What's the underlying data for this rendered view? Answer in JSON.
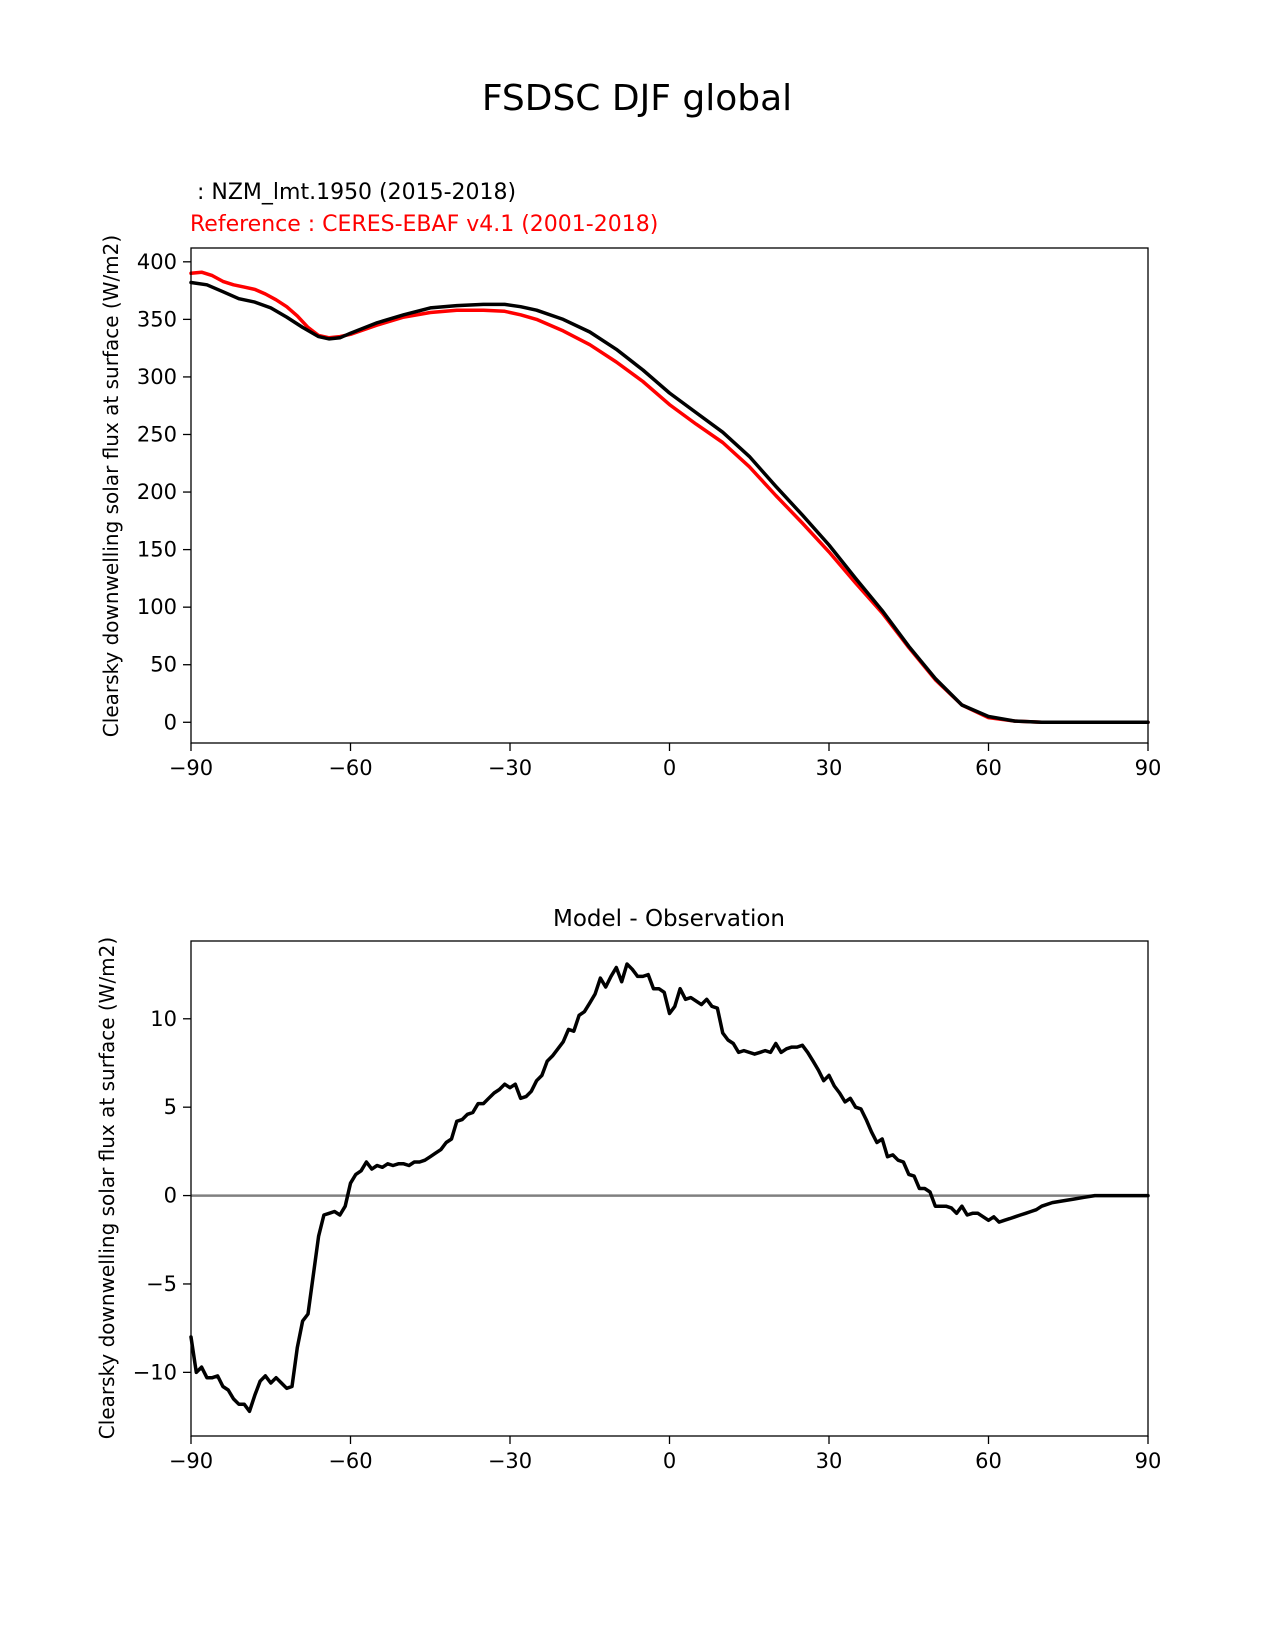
{
  "figure_title": "FSDSC DJF global",
  "chart_data": [
    {
      "type": "line",
      "test_label": " : NZM_lmt.1950 (2015-2018)",
      "reference_label": "Reference : CERES-EBAF v4.1 (2001-2018)",
      "xlabel": "",
      "ylabel": "Clearsky downwelling solar flux at surface (W/m2)",
      "xlim": [
        -90,
        90
      ],
      "ylim": [
        -18,
        412
      ],
      "xticks": [
        -90,
        -60,
        -30,
        0,
        30,
        60,
        90
      ],
      "xtick_labels": [
        "−90",
        "−60",
        "−30",
        "0",
        "30",
        "60",
        "90"
      ],
      "yticks": [
        0,
        50,
        100,
        150,
        200,
        250,
        300,
        350,
        400
      ],
      "ytick_labels": [
        "0",
        "50",
        "100",
        "150",
        "200",
        "250",
        "300",
        "350",
        "400"
      ],
      "series": [
        {
          "name": "NZM_lmt.1950 (2015-2018)",
          "color": "#000000",
          "x": [
            -90,
            -87,
            -84,
            -81,
            -78,
            -75,
            -72,
            -69,
            -66,
            -64,
            -62,
            -60,
            -55,
            -50,
            -45,
            -40,
            -35,
            -31,
            -28,
            -25,
            -20,
            -15,
            -10,
            -5,
            0,
            5,
            10,
            15,
            20,
            25,
            30,
            35,
            40,
            45,
            50,
            55,
            60,
            65,
            70,
            75,
            80,
            85,
            90
          ],
          "y": [
            382,
            380,
            374,
            368,
            365,
            360,
            352,
            343,
            335,
            333,
            334,
            338,
            347,
            354,
            360,
            362,
            363,
            363,
            361,
            358,
            350,
            339,
            324,
            306,
            286,
            269,
            252,
            231,
            205,
            180,
            154,
            125,
            97,
            66,
            38,
            15,
            5,
            1,
            0,
            0,
            0,
            0,
            0
          ]
        },
        {
          "name": "Reference : CERES-EBAF v4.1 (2001-2018)",
          "color": "#ff0000",
          "x": [
            -90,
            -88,
            -86,
            -84,
            -82,
            -80,
            -78,
            -76,
            -74,
            -72,
            -70,
            -68,
            -66,
            -64,
            -62,
            -60,
            -55,
            -50,
            -45,
            -40,
            -35,
            -31,
            -28,
            -25,
            -20,
            -15,
            -10,
            -5,
            0,
            5,
            10,
            15,
            20,
            25,
            30,
            35,
            40,
            45,
            50,
            55,
            60,
            65,
            70,
            75,
            80,
            85,
            90
          ],
          "y": [
            390,
            391,
            388,
            383,
            380,
            378,
            376,
            372,
            367,
            361,
            353,
            343,
            336,
            334,
            335,
            337,
            345,
            352,
            356,
            358,
            358,
            357,
            354,
            350,
            340,
            328,
            313,
            296,
            276,
            259,
            243,
            222,
            197,
            173,
            148,
            121,
            95,
            65,
            37,
            15,
            4,
            1,
            0,
            0,
            0,
            0,
            0
          ]
        }
      ]
    },
    {
      "type": "line",
      "title": "Model - Observation",
      "xlabel": "",
      "ylabel": "Clearsky downwelling solar flux at surface (W/m2)",
      "xlim": [
        -90,
        90
      ],
      "ylim": [
        -13.6,
        14.4
      ],
      "xticks": [
        -90,
        -60,
        -30,
        0,
        30,
        60,
        90
      ],
      "xtick_labels": [
        "−90",
        "−60",
        "−30",
        "0",
        "30",
        "60",
        "90"
      ],
      "yticks": [
        -10,
        -5,
        0,
        5,
        10
      ],
      "ytick_labels": [
        "−10",
        "−5",
        "0",
        "5",
        "10"
      ],
      "zero_line": {
        "y": 0,
        "color": "#808080"
      },
      "series": [
        {
          "name": "Model - Observation",
          "color": "#000000",
          "x": [
            -90,
            -89,
            -88,
            -87,
            -86,
            -85,
            -84,
            -83,
            -82,
            -81,
            -80,
            -79,
            -78,
            -77,
            -76,
            -75,
            -74,
            -73,
            -72,
            -71,
            -70,
            -69,
            -68,
            -67,
            -66,
            -65,
            -64,
            -63,
            -62,
            -61,
            -60,
            -59,
            -58,
            -57,
            -56,
            -55,
            -54,
            -53,
            -52,
            -51,
            -50,
            -49,
            -48,
            -47,
            -46,
            -45,
            -44,
            -43,
            -42,
            -41,
            -40,
            -39,
            -38,
            -37,
            -36,
            -35,
            -34,
            -33,
            -32,
            -31,
            -30,
            -29,
            -28,
            -27,
            -26,
            -25,
            -24,
            -23,
            -22,
            -21,
            -20,
            -19,
            -18,
            -17,
            -16,
            -15,
            -14,
            -13,
            -12,
            -11,
            -10,
            -9,
            -8,
            -7,
            -6,
            -5,
            -4,
            -3,
            -2,
            -1,
            0,
            1,
            2,
            3,
            4,
            5,
            6,
            7,
            8,
            9,
            10,
            11,
            12,
            13,
            14,
            15,
            16,
            17,
            18,
            19,
            20,
            21,
            22,
            23,
            24,
            25,
            26,
            27,
            28,
            29,
            30,
            31,
            32,
            33,
            34,
            35,
            36,
            37,
            38,
            39,
            40,
            41,
            42,
            43,
            44,
            45,
            46,
            47,
            48,
            49,
            50,
            51,
            52,
            53,
            54,
            55,
            56,
            57,
            58,
            59,
            60,
            61,
            62,
            63,
            64,
            65,
            66,
            67,
            68,
            69,
            70,
            72,
            74,
            76,
            78,
            80,
            82,
            84,
            86,
            88,
            90
          ],
          "y": [
            -8.0,
            -10.0,
            -9.7,
            -10.3,
            -10.3,
            -10.2,
            -10.8,
            -11.0,
            -11.5,
            -11.8,
            -11.8,
            -12.2,
            -11.3,
            -10.5,
            -10.2,
            -10.6,
            -10.3,
            -10.6,
            -10.9,
            -10.8,
            -8.6,
            -7.1,
            -6.7,
            -4.5,
            -2.3,
            -1.1,
            -1.0,
            -0.9,
            -1.1,
            -0.6,
            0.7,
            1.2,
            1.4,
            1.9,
            1.5,
            1.7,
            1.6,
            1.8,
            1.7,
            1.8,
            1.8,
            1.7,
            1.9,
            1.9,
            2.0,
            2.2,
            2.4,
            2.6,
            3.0,
            3.2,
            4.2,
            4.3,
            4.6,
            4.7,
            5.2,
            5.2,
            5.5,
            5.8,
            6.0,
            6.3,
            6.1,
            6.3,
            5.5,
            5.6,
            5.9,
            6.5,
            6.8,
            7.6,
            7.9,
            8.3,
            8.7,
            9.4,
            9.3,
            10.2,
            10.4,
            10.9,
            11.4,
            12.3,
            11.8,
            12.4,
            12.9,
            12.1,
            13.1,
            12.8,
            12.4,
            12.4,
            12.5,
            11.7,
            11.7,
            11.5,
            10.3,
            10.7,
            11.7,
            11.1,
            11.2,
            11.0,
            10.8,
            11.1,
            10.7,
            10.6,
            9.2,
            8.8,
            8.6,
            8.1,
            8.2,
            8.1,
            8.0,
            8.1,
            8.2,
            8.1,
            8.6,
            8.1,
            8.3,
            8.4,
            8.4,
            8.5,
            8.1,
            7.6,
            7.1,
            6.5,
            6.8,
            6.2,
            5.8,
            5.3,
            5.5,
            5.0,
            4.9,
            4.3,
            3.6,
            3.0,
            3.2,
            2.2,
            2.3,
            2.0,
            1.9,
            1.2,
            1.1,
            0.4,
            0.4,
            0.2,
            -0.6,
            -0.6,
            -0.6,
            -0.7,
            -1.0,
            -0.6,
            -1.1,
            -1.0,
            -1.0,
            -1.2,
            -1.4,
            -1.2,
            -1.5,
            -1.4,
            -1.3,
            -1.2,
            -1.1,
            -1.0,
            -0.9,
            -0.8,
            -0.6,
            -0.4,
            -0.3,
            -0.2,
            -0.1,
            0.0,
            0.0,
            0.0,
            0.0,
            0.0,
            0.0
          ]
        }
      ]
    }
  ]
}
